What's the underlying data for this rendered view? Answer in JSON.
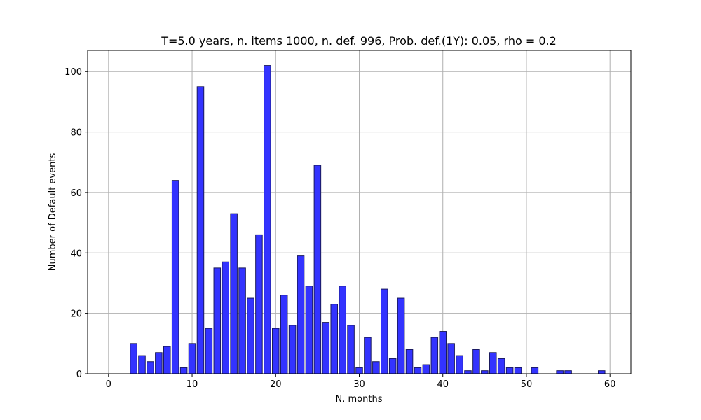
{
  "chart_data": {
    "type": "bar",
    "title": "T=5.0 years, n. items 1000, n. def. 996, Prob. def.(1Y): 0.05, rho = 0.2",
    "xlabel": "N. months",
    "ylabel": "Number of Default events",
    "xlim": [
      -2.5,
      62.5
    ],
    "ylim": [
      0,
      107
    ],
    "xticks": [
      0,
      10,
      20,
      30,
      40,
      50,
      60
    ],
    "yticks": [
      0,
      20,
      40,
      60,
      80,
      100
    ],
    "grid": true,
    "bar_color": "#3333ff",
    "edge_color": "#1a1a5e",
    "x": [
      0,
      1,
      2,
      3,
      4,
      5,
      6,
      7,
      8,
      9,
      10,
      11,
      12,
      13,
      14,
      15,
      16,
      17,
      18,
      19,
      20,
      21,
      22,
      23,
      24,
      25,
      26,
      27,
      28,
      29,
      30,
      31,
      32,
      33,
      34,
      35,
      36,
      37,
      38,
      39,
      40,
      41,
      42,
      43,
      44,
      45,
      46,
      47,
      48,
      49,
      50,
      51,
      52,
      53,
      54,
      55,
      56,
      57,
      58,
      59,
      60
    ],
    "values": [
      0,
      0,
      0,
      10,
      6,
      4,
      7,
      9,
      64,
      2,
      10,
      95,
      15,
      35,
      37,
      53,
      35,
      25,
      46,
      102,
      15,
      26,
      16,
      39,
      29,
      69,
      17,
      23,
      29,
      16,
      2,
      12,
      4,
      28,
      5,
      25,
      8,
      2,
      3,
      12,
      14,
      10,
      6,
      1,
      8,
      1,
      7,
      5,
      2,
      2,
      0,
      2,
      0,
      0,
      1,
      1,
      0,
      0,
      0,
      1,
      0
    ]
  }
}
